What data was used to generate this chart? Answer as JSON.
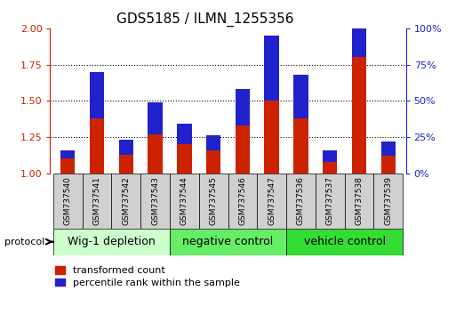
{
  "title": "GDS5185 / ILMN_1255356",
  "samples": [
    "GSM737540",
    "GSM737541",
    "GSM737542",
    "GSM737543",
    "GSM737544",
    "GSM737545",
    "GSM737546",
    "GSM737547",
    "GSM737536",
    "GSM737537",
    "GSM737538",
    "GSM737539"
  ],
  "red_values": [
    1.1,
    1.38,
    1.13,
    1.27,
    1.2,
    1.16,
    1.33,
    1.5,
    1.38,
    1.08,
    1.8,
    1.12
  ],
  "blue_values": [
    6,
    32,
    10,
    22,
    14,
    10,
    25,
    45,
    30,
    8,
    52,
    10
  ],
  "ylim_left": [
    1.0,
    2.0
  ],
  "ylim_right": [
    0,
    100
  ],
  "yticks_left": [
    1.0,
    1.25,
    1.5,
    1.75,
    2.0
  ],
  "yticks_right": [
    0,
    25,
    50,
    75,
    100
  ],
  "ytick_labels_right": [
    "0%",
    "25%",
    "50%",
    "75%",
    "100%"
  ],
  "groups": [
    {
      "label": "Wig-1 depletion",
      "start": 0,
      "end": 4,
      "color": "#ccffcc"
    },
    {
      "label": "negative control",
      "start": 4,
      "end": 8,
      "color": "#66ee66"
    },
    {
      "label": "vehicle control",
      "start": 8,
      "end": 12,
      "color": "#33dd33"
    }
  ],
  "protocol_label": "protocol",
  "bar_width": 0.5,
  "red_color": "#cc2200",
  "blue_color": "#2222cc",
  "grid_color": "black",
  "bg_color": "#ffffff",
  "tick_label_color_left": "#cc2200",
  "tick_label_color_right": "#2222cc",
  "legend_red": "transformed count",
  "legend_blue": "percentile rank within the sample",
  "title_fontsize": 11,
  "axis_fontsize": 8,
  "group_label_fontsize": 9,
  "legend_fontsize": 8,
  "sample_box_color": "#d0d0d0",
  "hgrid_lines": [
    1.25,
    1.5,
    1.75
  ]
}
